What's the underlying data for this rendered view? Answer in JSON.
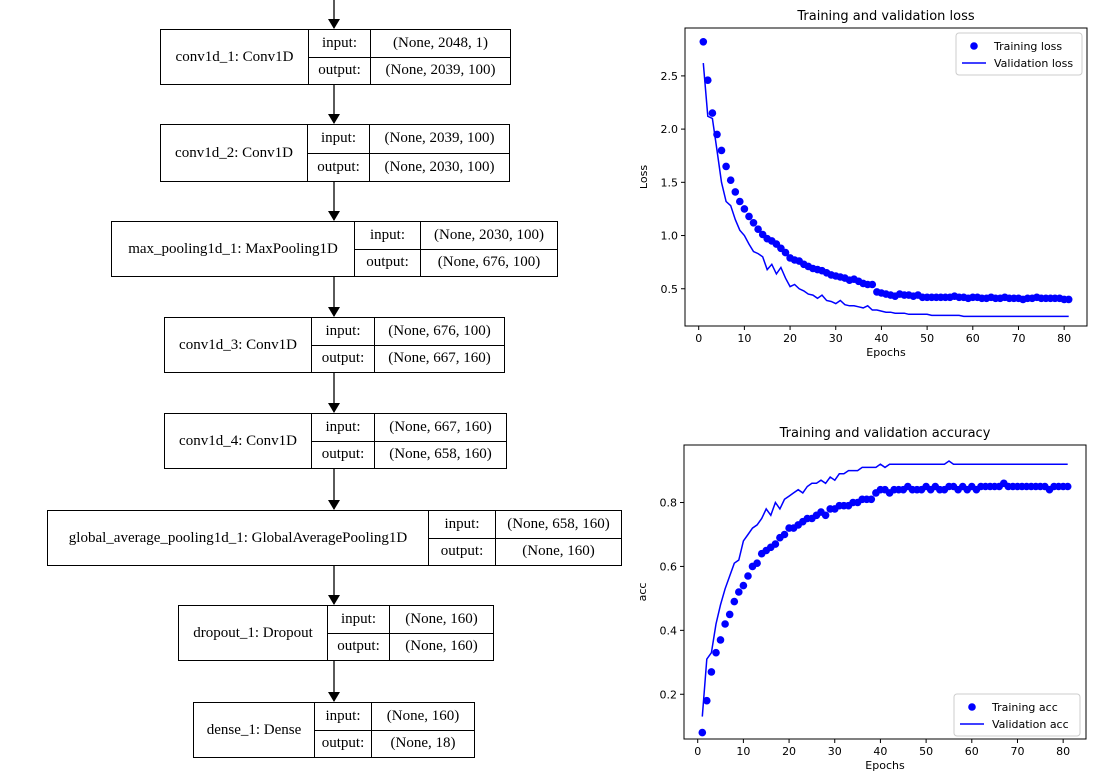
{
  "model": {
    "layers": [
      {
        "name": "conv1d_1: Conv1D",
        "input_label": "input:",
        "output_label": "output:",
        "input": "(None, 2048, 1)",
        "output": "(None, 2039, 100)"
      },
      {
        "name": "conv1d_2: Conv1D",
        "input_label": "input:",
        "output_label": "output:",
        "input": "(None, 2039, 100)",
        "output": "(None, 2030, 100)"
      },
      {
        "name": "max_pooling1d_1: MaxPooling1D",
        "input_label": "input:",
        "output_label": "output:",
        "input": "(None, 2030, 100)",
        "output": "(None, 676, 100)"
      },
      {
        "name": "conv1d_3: Conv1D",
        "input_label": "input:",
        "output_label": "output:",
        "input": "(None, 676, 100)",
        "output": "(None, 667, 160)"
      },
      {
        "name": "conv1d_4: Conv1D",
        "input_label": "input:",
        "output_label": "output:",
        "input": "(None, 667, 160)",
        "output": "(None, 658, 160)"
      },
      {
        "name": "global_average_pooling1d_1: GlobalAveragePooling1D",
        "input_label": "input:",
        "output_label": "output:",
        "input": "(None, 658, 160)",
        "output": "(None, 160)"
      },
      {
        "name": "dropout_1: Dropout",
        "input_label": "input:",
        "output_label": "output:",
        "input": "(None, 160)",
        "output": "(None, 160)"
      },
      {
        "name": "dense_1: Dense",
        "input_label": "input:",
        "output_label": "output:",
        "input": "(None, 160)",
        "output": "(None, 18)"
      }
    ]
  },
  "chart_data": [
    {
      "type": "line",
      "title": "Training and validation loss",
      "xlabel": "Epochs",
      "ylabel": "Loss",
      "xlim": [
        -3,
        85
      ],
      "ylim": [
        0.15,
        2.95
      ],
      "xticks": [
        0,
        10,
        20,
        30,
        40,
        50,
        60,
        70,
        80
      ],
      "yticks": [
        0.5,
        1.0,
        1.5,
        2.0,
        2.5
      ],
      "ytick_labels": [
        "0.5",
        "1.0",
        "1.5",
        "2.0",
        "2.5"
      ],
      "legend_position": "top-right",
      "color": "#0000ff",
      "series": [
        {
          "name": "Training loss",
          "style": "markers",
          "values": [
            2.82,
            2.46,
            2.15,
            1.95,
            1.8,
            1.65,
            1.52,
            1.41,
            1.32,
            1.25,
            1.18,
            1.12,
            1.06,
            1.01,
            0.97,
            0.95,
            0.92,
            0.88,
            0.84,
            0.79,
            0.77,
            0.76,
            0.73,
            0.71,
            0.69,
            0.68,
            0.67,
            0.65,
            0.63,
            0.62,
            0.61,
            0.6,
            0.58,
            0.59,
            0.57,
            0.55,
            0.54,
            0.54,
            0.47,
            0.46,
            0.45,
            0.44,
            0.43,
            0.45,
            0.44,
            0.44,
            0.43,
            0.44,
            0.42,
            0.42,
            0.42,
            0.42,
            0.42,
            0.42,
            0.42,
            0.43,
            0.42,
            0.42,
            0.41,
            0.42,
            0.42,
            0.41,
            0.41,
            0.42,
            0.41,
            0.41,
            0.42,
            0.41,
            0.41,
            0.41,
            0.4,
            0.41,
            0.41,
            0.42,
            0.41,
            0.41,
            0.41,
            0.41,
            0.41,
            0.4,
            0.4
          ]
        },
        {
          "name": "Validation loss",
          "style": "line",
          "values": [
            2.62,
            2.12,
            2.1,
            1.8,
            1.5,
            1.32,
            1.28,
            1.15,
            1.05,
            1.0,
            0.92,
            0.85,
            0.83,
            0.8,
            0.68,
            0.73,
            0.64,
            0.7,
            0.6,
            0.52,
            0.54,
            0.5,
            0.48,
            0.45,
            0.44,
            0.41,
            0.44,
            0.39,
            0.38,
            0.36,
            0.39,
            0.35,
            0.34,
            0.34,
            0.33,
            0.32,
            0.34,
            0.3,
            0.3,
            0.29,
            0.28,
            0.28,
            0.27,
            0.27,
            0.27,
            0.26,
            0.26,
            0.26,
            0.26,
            0.26,
            0.25,
            0.25,
            0.25,
            0.25,
            0.25,
            0.25,
            0.25,
            0.24,
            0.24,
            0.24,
            0.24,
            0.24,
            0.24,
            0.24,
            0.24,
            0.24,
            0.24,
            0.24,
            0.24,
            0.24,
            0.24,
            0.24,
            0.24,
            0.24,
            0.24,
            0.24,
            0.24,
            0.24,
            0.24,
            0.24,
            0.24
          ]
        }
      ]
    },
    {
      "type": "line",
      "title": "Training and validation accuracy",
      "xlabel": "Epochs",
      "ylabel": "acc",
      "xlim": [
        -3,
        85
      ],
      "ylim": [
        0.06,
        0.98
      ],
      "xticks": [
        0,
        10,
        20,
        30,
        40,
        50,
        60,
        70,
        80
      ],
      "yticks": [
        0.2,
        0.4,
        0.6,
        0.8
      ],
      "ytick_labels": [
        "0.2",
        "0.4",
        "0.6",
        "0.8"
      ],
      "legend_position": "bottom-right",
      "color": "#0000ff",
      "series": [
        {
          "name": "Training acc",
          "style": "markers",
          "values": [
            0.08,
            0.18,
            0.27,
            0.33,
            0.37,
            0.42,
            0.45,
            0.49,
            0.52,
            0.54,
            0.57,
            0.6,
            0.61,
            0.64,
            0.65,
            0.66,
            0.67,
            0.69,
            0.7,
            0.72,
            0.72,
            0.73,
            0.74,
            0.75,
            0.75,
            0.76,
            0.77,
            0.76,
            0.78,
            0.78,
            0.79,
            0.79,
            0.79,
            0.8,
            0.8,
            0.81,
            0.81,
            0.81,
            0.83,
            0.84,
            0.84,
            0.83,
            0.84,
            0.84,
            0.84,
            0.85,
            0.84,
            0.84,
            0.84,
            0.85,
            0.84,
            0.85,
            0.84,
            0.84,
            0.85,
            0.85,
            0.84,
            0.85,
            0.84,
            0.85,
            0.84,
            0.85,
            0.85,
            0.85,
            0.85,
            0.85,
            0.86,
            0.85,
            0.85,
            0.85,
            0.85,
            0.85,
            0.85,
            0.85,
            0.85,
            0.85,
            0.84,
            0.85,
            0.85,
            0.85,
            0.85
          ]
        },
        {
          "name": "Validation acc",
          "style": "line",
          "values": [
            0.13,
            0.31,
            0.33,
            0.42,
            0.48,
            0.53,
            0.57,
            0.61,
            0.62,
            0.68,
            0.7,
            0.72,
            0.73,
            0.75,
            0.78,
            0.76,
            0.8,
            0.78,
            0.81,
            0.82,
            0.83,
            0.84,
            0.83,
            0.85,
            0.86,
            0.86,
            0.87,
            0.86,
            0.88,
            0.87,
            0.89,
            0.89,
            0.9,
            0.9,
            0.9,
            0.91,
            0.91,
            0.91,
            0.91,
            0.92,
            0.91,
            0.92,
            0.92,
            0.92,
            0.92,
            0.92,
            0.92,
            0.92,
            0.92,
            0.92,
            0.92,
            0.92,
            0.92,
            0.92,
            0.93,
            0.92,
            0.92,
            0.92,
            0.92,
            0.92,
            0.92,
            0.92,
            0.92,
            0.92,
            0.92,
            0.92,
            0.92,
            0.92,
            0.92,
            0.92,
            0.92,
            0.92,
            0.92,
            0.92,
            0.92,
            0.92,
            0.92,
            0.92,
            0.92,
            0.92,
            0.92
          ]
        }
      ]
    }
  ]
}
